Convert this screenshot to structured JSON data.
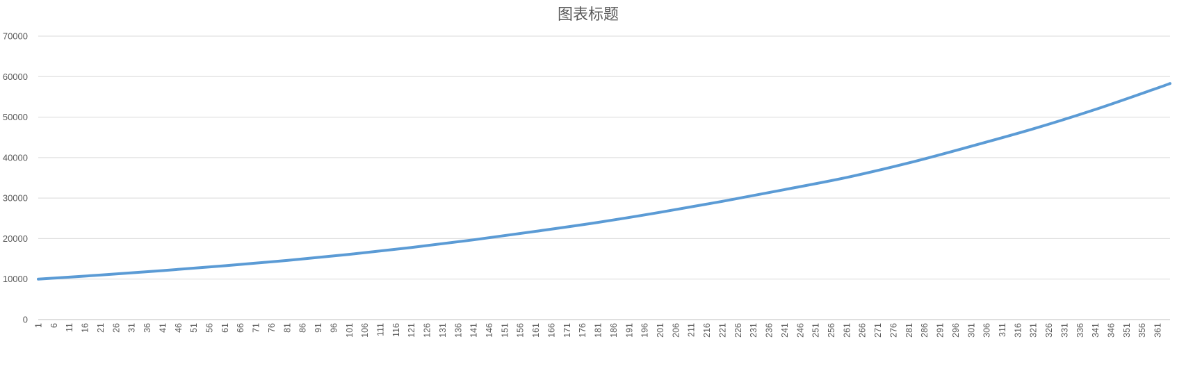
{
  "chart_data": {
    "type": "line",
    "title": "图表标题",
    "xlabel": "",
    "ylabel": "",
    "grid": true,
    "legend": "none",
    "x_range": [
      1,
      365
    ],
    "x_tick_labels": [
      "1",
      "6",
      "11",
      "16",
      "21",
      "26",
      "31",
      "36",
      "41",
      "46",
      "51",
      "56",
      "61",
      "66",
      "71",
      "76",
      "81",
      "86",
      "91",
      "96",
      "101",
      "106",
      "111",
      "116",
      "121",
      "126",
      "131",
      "136",
      "141",
      "146",
      "151",
      "156",
      "161",
      "166",
      "171",
      "176",
      "181",
      "186",
      "191",
      "196",
      "201",
      "206",
      "211",
      "216",
      "221",
      "226",
      "231",
      "236",
      "241",
      "246",
      "251",
      "256",
      "261",
      "266",
      "271",
      "276",
      "281",
      "286",
      "291",
      "296",
      "301",
      "306",
      "311",
      "316",
      "321",
      "326",
      "331",
      "336",
      "341",
      "346",
      "351",
      "356",
      "361"
    ],
    "y_range": [
      0,
      70000
    ],
    "y_tick_labels": [
      "0",
      "10000",
      "20000",
      "30000",
      "40000",
      "50000",
      "60000",
      "70000"
    ],
    "series": [
      {
        "color": "#5b9bd5",
        "points": [
          [
            1,
            10000
          ],
          [
            21,
            11000
          ],
          [
            41,
            12100
          ],
          [
            61,
            13300
          ],
          [
            81,
            14600
          ],
          [
            101,
            16100
          ],
          [
            121,
            17800
          ],
          [
            141,
            19700
          ],
          [
            161,
            21800
          ],
          [
            181,
            24000
          ],
          [
            201,
            26500
          ],
          [
            221,
            29200
          ],
          [
            241,
            32100
          ],
          [
            261,
            35100
          ],
          [
            281,
            38700
          ],
          [
            301,
            42800
          ],
          [
            321,
            47100
          ],
          [
            341,
            51900
          ],
          [
            361,
            57200
          ],
          [
            365,
            58300
          ]
        ]
      }
    ]
  }
}
